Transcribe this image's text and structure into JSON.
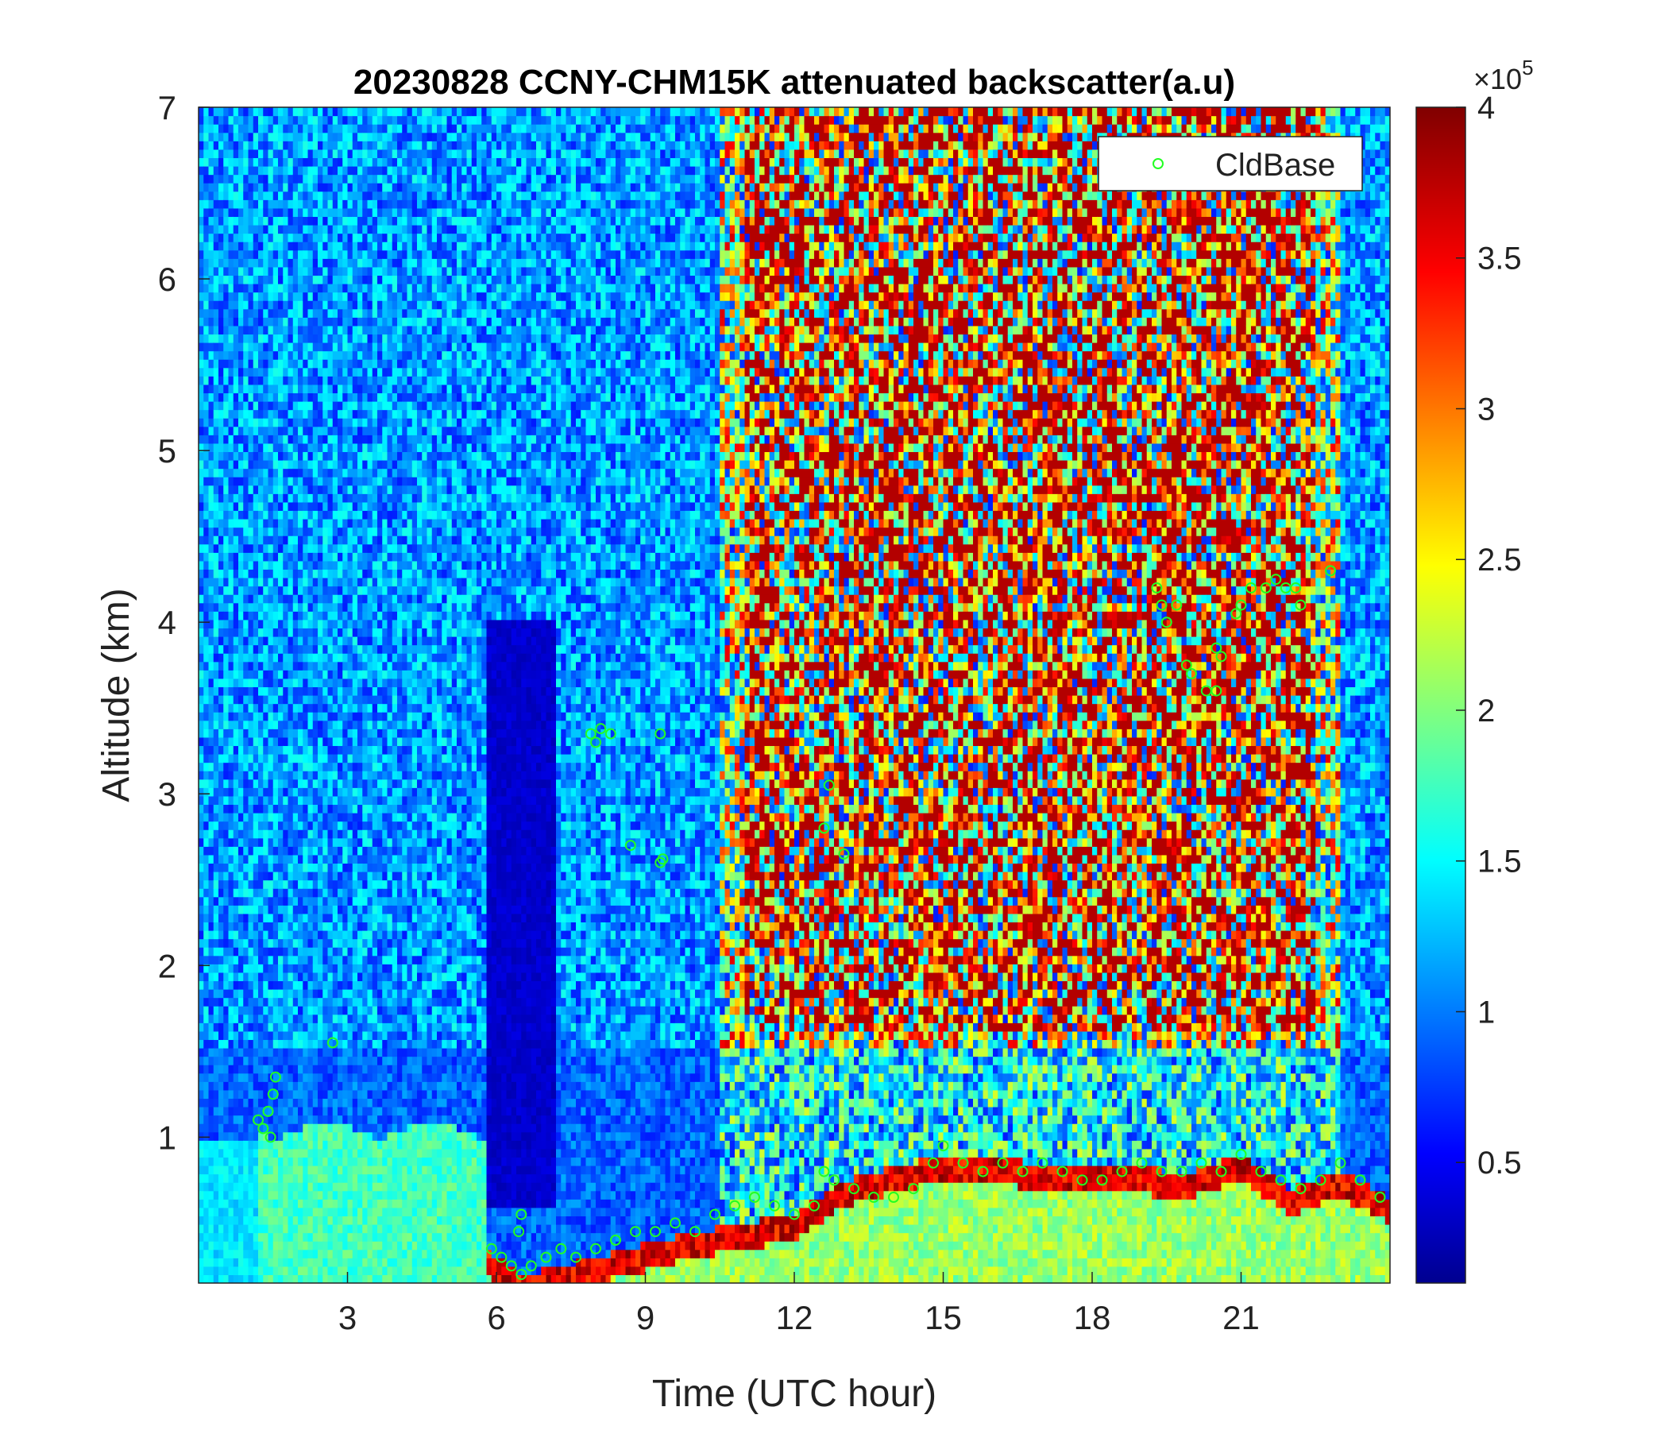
{
  "chart_data": {
    "type": "heatmap",
    "title": "20230828 CCNY-CHM15K attenuated backscatter(a.u)",
    "xlabel": "Time (UTC hour)",
    "ylabel": "Altitude (km)",
    "xlim": [
      0,
      24
    ],
    "ylim": [
      0.15,
      7
    ],
    "xticks": [
      3,
      6,
      9,
      12,
      15,
      18,
      21
    ],
    "yticks": [
      1,
      2,
      3,
      4,
      5,
      6,
      7
    ],
    "colorbar": {
      "colormap": "jet",
      "range": [
        0.1,
        4
      ],
      "ticks": [
        0.5,
        1,
        1.5,
        2,
        2.5,
        3,
        3.5,
        4
      ],
      "exponent_label": "×10",
      "exponent_power": "5"
    },
    "legend": {
      "position": "top-right",
      "entries": [
        {
          "name": "CldBase",
          "marker": "circle",
          "color": "#22ff22"
        }
      ]
    },
    "series": [
      {
        "name": "CldBase",
        "type": "scatter",
        "color": "#22ff22",
        "points": [
          [
            1.2,
            1.1
          ],
          [
            1.3,
            1.05
          ],
          [
            1.4,
            1.15
          ],
          [
            1.5,
            1.25
          ],
          [
            1.55,
            1.35
          ],
          [
            1.45,
            1.0
          ],
          [
            2.7,
            1.55
          ],
          [
            5.9,
            0.35
          ],
          [
            6.1,
            0.3
          ],
          [
            6.3,
            0.25
          ],
          [
            6.5,
            0.2
          ],
          [
            6.5,
            0.55
          ],
          [
            6.45,
            0.45
          ],
          [
            6.7,
            0.25
          ],
          [
            7.0,
            0.3
          ],
          [
            7.3,
            0.35
          ],
          [
            7.6,
            0.3
          ],
          [
            8.0,
            0.35
          ],
          [
            8.4,
            0.4
          ],
          [
            8.8,
            0.45
          ],
          [
            9.2,
            0.45
          ],
          [
            9.6,
            0.5
          ],
          [
            10.0,
            0.45
          ],
          [
            10.4,
            0.55
          ],
          [
            10.8,
            0.6
          ],
          [
            11.2,
            0.65
          ],
          [
            11.6,
            0.6
          ],
          [
            12.0,
            0.55
          ],
          [
            12.4,
            0.6
          ],
          [
            12.6,
            0.8
          ],
          [
            12.8,
            0.75
          ],
          [
            13.2,
            0.7
          ],
          [
            13.6,
            0.65
          ],
          [
            14.0,
            0.65
          ],
          [
            14.4,
            0.7
          ],
          [
            14.8,
            0.85
          ],
          [
            15.0,
            0.95
          ],
          [
            15.4,
            0.85
          ],
          [
            15.8,
            0.8
          ],
          [
            16.2,
            0.85
          ],
          [
            16.6,
            0.8
          ],
          [
            17.0,
            0.85
          ],
          [
            17.4,
            0.8
          ],
          [
            17.8,
            0.75
          ],
          [
            18.2,
            0.75
          ],
          [
            18.6,
            0.8
          ],
          [
            19.0,
            0.85
          ],
          [
            19.4,
            0.8
          ],
          [
            19.8,
            0.8
          ],
          [
            20.2,
            0.85
          ],
          [
            20.6,
            0.8
          ],
          [
            21.0,
            0.9
          ],
          [
            21.4,
            0.8
          ],
          [
            21.8,
            0.75
          ],
          [
            22.2,
            0.7
          ],
          [
            22.6,
            0.75
          ],
          [
            23.0,
            0.85
          ],
          [
            23.4,
            0.75
          ],
          [
            23.8,
            0.65
          ],
          [
            7.9,
            3.35
          ],
          [
            8.0,
            3.3
          ],
          [
            8.1,
            3.38
          ],
          [
            8.3,
            3.35
          ],
          [
            9.3,
            3.35
          ],
          [
            8.7,
            2.7
          ],
          [
            9.3,
            2.6
          ],
          [
            9.35,
            2.62
          ],
          [
            12.6,
            2.8
          ],
          [
            12.7,
            3.05
          ],
          [
            13.0,
            2.65
          ],
          [
            19.3,
            4.2
          ],
          [
            19.4,
            4.1
          ],
          [
            19.5,
            4.0
          ],
          [
            19.7,
            4.1
          ],
          [
            19.9,
            3.75
          ],
          [
            20.0,
            3.7
          ],
          [
            20.3,
            3.6
          ],
          [
            20.5,
            3.6
          ],
          [
            20.5,
            3.85
          ],
          [
            20.6,
            3.8
          ],
          [
            20.9,
            4.05
          ],
          [
            21.0,
            4.1
          ],
          [
            21.2,
            4.2
          ],
          [
            21.5,
            4.2
          ],
          [
            21.7,
            4.25
          ],
          [
            21.9,
            4.2
          ],
          [
            22.1,
            4.2
          ],
          [
            22.2,
            4.1
          ],
          [
            22.8,
            4.3
          ]
        ]
      }
    ]
  }
}
